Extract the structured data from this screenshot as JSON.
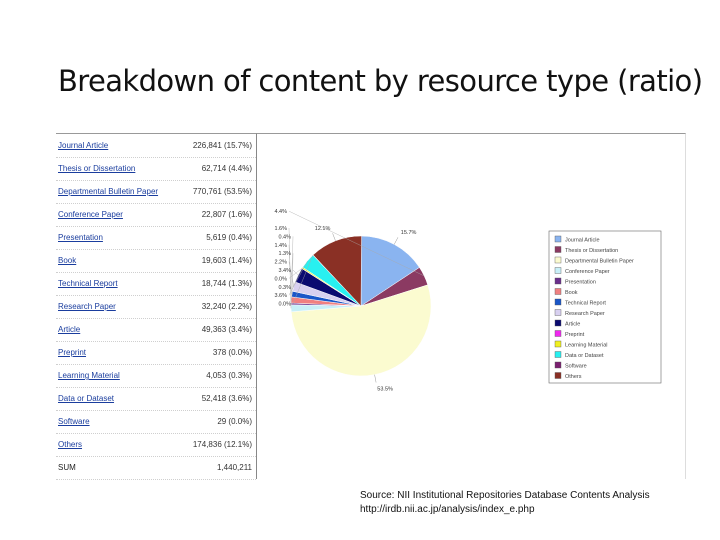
{
  "title": "Breakdown of content by resource type (ratio)",
  "table": {
    "rows": [
      {
        "label": "Journal Article",
        "value": "226,841 (15.7%)"
      },
      {
        "label": "Thesis or Dissertation",
        "value": "62,714 (4.4%)"
      },
      {
        "label": "Departmental Bulletin Paper",
        "value": "770,761 (53.5%)"
      },
      {
        "label": "Conference Paper",
        "value": "22,807 (1.6%)"
      },
      {
        "label": "Presentation",
        "value": "5,619 (0.4%)"
      },
      {
        "label": "Book",
        "value": "19,603 (1.4%)"
      },
      {
        "label": "Technical Report",
        "value": "18,744 (1.3%)"
      },
      {
        "label": "Research Paper",
        "value": "32,240 (2.2%)"
      },
      {
        "label": "Article",
        "value": "49,363 (3.4%)"
      },
      {
        "label": "Preprint",
        "value": "378 (0.0%)"
      },
      {
        "label": "Learning Material",
        "value": "4,053 (0.3%)"
      },
      {
        "label": "Data or Dataset",
        "value": "52,418 (3.6%)"
      },
      {
        "label": "Software",
        "value": "29 (0.0%)"
      },
      {
        "label": "Others",
        "value": "174,836 (12.1%)"
      }
    ],
    "sum_label": "SUM",
    "sum_value": "1,440,211"
  },
  "chart_data": {
    "type": "pie",
    "title": "",
    "legend_position": "right",
    "slices": [
      {
        "name": "Journal Article",
        "value": 15.7,
        "label": "15.7%",
        "color": "#8ab4f0"
      },
      {
        "name": "Thesis or Dissertation",
        "value": 4.4,
        "label": "4.4%",
        "color": "#8b3a62"
      },
      {
        "name": "Departmental Bulletin Paper",
        "value": 53.5,
        "label": "53.5%",
        "color": "#fbfbd0"
      },
      {
        "name": "Conference Paper",
        "value": 1.6,
        "label": "1.6%",
        "color": "#c8f0f8"
      },
      {
        "name": "Presentation",
        "value": 0.4,
        "label": "0.4%",
        "color": "#6a2f8c"
      },
      {
        "name": "Book",
        "value": 1.4,
        "label": "1.4%",
        "color": "#f08080"
      },
      {
        "name": "Technical Report",
        "value": 1.3,
        "label": "1.3%",
        "color": "#1a56c8"
      },
      {
        "name": "Research Paper",
        "value": 2.2,
        "label": "2.2%",
        "color": "#d8d0f0"
      },
      {
        "name": "Article",
        "value": 3.4,
        "label": "3.4%",
        "color": "#0a0a70"
      },
      {
        "name": "Preprint",
        "value": 0.0,
        "label": "0.0%",
        "color": "#f028f0"
      },
      {
        "name": "Learning Material",
        "value": 0.3,
        "label": "0.3%",
        "color": "#f0f020"
      },
      {
        "name": "Data or Dataset",
        "value": 3.6,
        "label": "3.6%",
        "color": "#28f0f0"
      },
      {
        "name": "Software",
        "value": 0.0,
        "label": "0.0%",
        "color": "#7a2070"
      },
      {
        "name": "Others",
        "value": 12.1,
        "label": "12.1%",
        "color": "#8a3025"
      }
    ]
  },
  "source": {
    "line1": "Source: NII Institutional Repositories Database Contents Analysis",
    "line2": "http://irdb.nii.ac.jp/analysis/index_e.php"
  }
}
